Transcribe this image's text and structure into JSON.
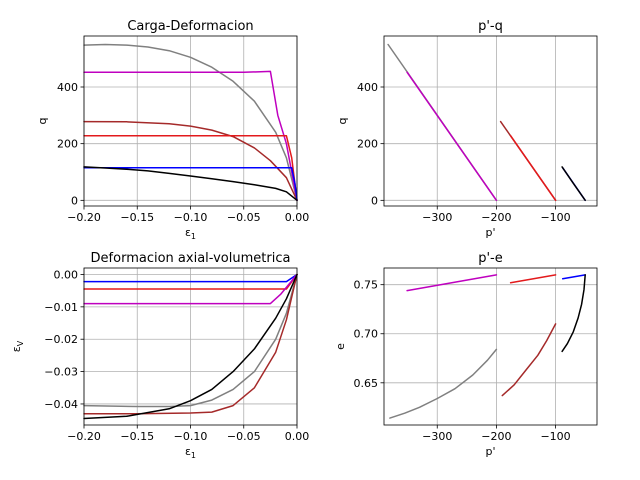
{
  "colors": {
    "blue": "#0000ff",
    "red": "#e31a1c",
    "purple": "#bf00bf",
    "brown": "#a52a2a",
    "gray": "#808080",
    "black": "#000000"
  },
  "chart_data": [
    {
      "id": "carga",
      "type": "line",
      "title": "Carga-Deformacion",
      "xlabel": "ε₁",
      "ylabel": "q",
      "xlim": [
        -0.2,
        0.0
      ],
      "ylim": [
        -20,
        580
      ],
      "xticks": [
        -0.2,
        -0.15,
        -0.1,
        -0.05,
        0.0
      ],
      "yticks": [
        0,
        200,
        400
      ],
      "xtick_labels": [
        "−0.20",
        "−0.15",
        "−0.10",
        "−0.05",
        "0.00"
      ],
      "ytick_labels": [
        "0",
        "200",
        "400"
      ],
      "grid": true,
      "series": [
        {
          "color": "gray",
          "points": [
            [
              -0.2,
              548
            ],
            [
              -0.18,
              550
            ],
            [
              -0.16,
              548
            ],
            [
              -0.14,
              541
            ],
            [
              -0.12,
              528
            ],
            [
              -0.1,
              505
            ],
            [
              -0.08,
              470
            ],
            [
              -0.06,
              420
            ],
            [
              -0.04,
              350
            ],
            [
              -0.02,
              240
            ],
            [
              -0.01,
              150
            ],
            [
              0,
              0
            ]
          ]
        },
        {
          "color": "purple",
          "points": [
            [
              -0.2,
              452
            ],
            [
              -0.1,
              452
            ],
            [
              -0.05,
              452
            ],
            [
              -0.025,
              455
            ],
            [
              -0.018,
              300
            ],
            [
              -0.01,
              200
            ],
            [
              0,
              0
            ]
          ]
        },
        {
          "color": "brown",
          "points": [
            [
              -0.2,
              278
            ],
            [
              -0.16,
              277
            ],
            [
              -0.12,
              270
            ],
            [
              -0.1,
              262
            ],
            [
              -0.08,
              248
            ],
            [
              -0.06,
              225
            ],
            [
              -0.04,
              185
            ],
            [
              -0.025,
              140
            ],
            [
              -0.01,
              80
            ],
            [
              0,
              0
            ]
          ]
        },
        {
          "color": "red",
          "points": [
            [
              -0.2,
              228
            ],
            [
              -0.1,
              228
            ],
            [
              -0.01,
              228
            ],
            [
              -0.005,
              150
            ],
            [
              0,
              0
            ]
          ]
        },
        {
          "color": "blue",
          "points": [
            [
              -0.2,
              115
            ],
            [
              -0.1,
              115
            ],
            [
              -0.005,
              115
            ],
            [
              -0.002,
              60
            ],
            [
              0,
              0
            ]
          ]
        },
        {
          "color": "black",
          "points": [
            [
              -0.2,
              118
            ],
            [
              -0.18,
              114
            ],
            [
              -0.16,
              110
            ],
            [
              -0.14,
              104
            ],
            [
              -0.12,
              95
            ],
            [
              -0.1,
              86
            ],
            [
              -0.08,
              76
            ],
            [
              -0.06,
              66
            ],
            [
              -0.04,
              55
            ],
            [
              -0.02,
              42
            ],
            [
              -0.01,
              30
            ],
            [
              0,
              0
            ]
          ]
        }
      ]
    },
    {
      "id": "pq",
      "type": "line",
      "title": "p'-q",
      "xlabel": "p'",
      "ylabel": "q",
      "xlim": [
        -390,
        -30
      ],
      "ylim": [
        -20,
        580
      ],
      "xticks": [
        -300,
        -200,
        -100
      ],
      "yticks": [
        0,
        200,
        400
      ],
      "xtick_labels": [
        "−300",
        "−200",
        "−100"
      ],
      "ytick_labels": [
        "0",
        "200",
        "400"
      ],
      "grid": true,
      "series": [
        {
          "color": "gray",
          "points": [
            [
              -383,
              550
            ],
            [
              -200,
              0
            ]
          ]
        },
        {
          "color": "purple",
          "points": [
            [
              -351,
              452
            ],
            [
              -200,
              0
            ]
          ]
        },
        {
          "color": "brown",
          "points": [
            [
              -193,
              278
            ],
            [
              -100,
              0
            ]
          ]
        },
        {
          "color": "red",
          "points": [
            [
              -176,
              228
            ],
            [
              -100,
              0
            ]
          ]
        },
        {
          "color": "blue",
          "points": [
            [
              -88,
              115
            ],
            [
              -50,
              0
            ]
          ]
        },
        {
          "color": "black",
          "points": [
            [
              -89,
              118
            ],
            [
              -70,
              60
            ],
            [
              -50,
              0
            ]
          ]
        }
      ]
    },
    {
      "id": "vol",
      "type": "line",
      "title": "Deformacion axial-volumetrica",
      "xlabel": "ε₁",
      "ylabel": "εV",
      "xlim": [
        -0.2,
        0.0
      ],
      "ylim": [
        -0.0465,
        0.002
      ],
      "xticks": [
        -0.2,
        -0.15,
        -0.1,
        -0.05,
        0.0
      ],
      "yticks": [
        0,
        -0.01,
        -0.02,
        -0.03,
        -0.04
      ],
      "xtick_labels": [
        "−0.20",
        "−0.15",
        "−0.10",
        "−0.05",
        "0.00"
      ],
      "ytick_labels": [
        "0.00",
        "−0.01",
        "−0.02",
        "−0.03",
        "−0.04"
      ],
      "grid": true,
      "series": [
        {
          "color": "blue",
          "points": [
            [
              -0.2,
              -0.0022
            ],
            [
              -0.01,
              -0.0022
            ],
            [
              0,
              0
            ]
          ]
        },
        {
          "color": "red",
          "points": [
            [
              -0.2,
              -0.0045
            ],
            [
              -0.01,
              -0.0045
            ],
            [
              0,
              0
            ]
          ]
        },
        {
          "color": "purple",
          "points": [
            [
              -0.2,
              -0.009
            ],
            [
              -0.025,
              -0.009
            ],
            [
              -0.015,
              -0.006
            ],
            [
              0,
              0
            ]
          ]
        },
        {
          "color": "gray",
          "points": [
            [
              -0.2,
              -0.0405
            ],
            [
              -0.15,
              -0.0408
            ],
            [
              -0.12,
              -0.0408
            ],
            [
              -0.1,
              -0.0405
            ],
            [
              -0.08,
              -0.0388
            ],
            [
              -0.06,
              -0.0355
            ],
            [
              -0.04,
              -0.03
            ],
            [
              -0.02,
              -0.02
            ],
            [
              -0.01,
              -0.012
            ],
            [
              0,
              0
            ]
          ]
        },
        {
          "color": "brown",
          "points": [
            [
              -0.2,
              -0.043
            ],
            [
              -0.15,
              -0.043
            ],
            [
              -0.1,
              -0.0428
            ],
            [
              -0.08,
              -0.0425
            ],
            [
              -0.06,
              -0.0405
            ],
            [
              -0.04,
              -0.035
            ],
            [
              -0.02,
              -0.024
            ],
            [
              -0.01,
              -0.014
            ],
            [
              0,
              0
            ]
          ]
        },
        {
          "color": "black",
          "points": [
            [
              -0.2,
              -0.0445
            ],
            [
              -0.16,
              -0.0438
            ],
            [
              -0.12,
              -0.0415
            ],
            [
              -0.1,
              -0.039
            ],
            [
              -0.08,
              -0.0355
            ],
            [
              -0.06,
              -0.03
            ],
            [
              -0.04,
              -0.023
            ],
            [
              -0.02,
              -0.0135
            ],
            [
              -0.01,
              -0.0075
            ],
            [
              0,
              0
            ]
          ]
        }
      ]
    },
    {
      "id": "pe",
      "type": "line",
      "title": "p'-e",
      "xlabel": "p'",
      "ylabel": "e",
      "xlim": [
        -390,
        -30
      ],
      "ylim": [
        0.607,
        0.767
      ],
      "xticks": [
        -300,
        -200,
        -100
      ],
      "yticks": [
        0.65,
        0.7,
        0.75
      ],
      "xtick_labels": [
        "−300",
        "−200",
        "−100"
      ],
      "ytick_labels": [
        "0.65",
        "0.70",
        "0.75"
      ],
      "grid": true,
      "series": [
        {
          "color": "purple",
          "points": [
            [
              -351,
              0.744
            ],
            [
              -200,
              0.76
            ]
          ]
        },
        {
          "color": "red",
          "points": [
            [
              -176,
              0.752
            ],
            [
              -100,
              0.76
            ]
          ]
        },
        {
          "color": "blue",
          "points": [
            [
              -88,
              0.756
            ],
            [
              -50,
              0.76
            ]
          ]
        },
        {
          "color": "black",
          "points": [
            [
              -89,
              0.682
            ],
            [
              -80,
              0.69
            ],
            [
              -70,
              0.702
            ],
            [
              -62,
              0.716
            ],
            [
              -56,
              0.73
            ],
            [
              -52,
              0.745
            ],
            [
              -50,
              0.76
            ]
          ]
        },
        {
          "color": "gray",
          "points": [
            [
              -380,
              0.614
            ],
            [
              -355,
              0.619
            ],
            [
              -330,
              0.625
            ],
            [
              -300,
              0.634
            ],
            [
              -270,
              0.644
            ],
            [
              -240,
              0.658
            ],
            [
              -215,
              0.673
            ],
            [
              -200,
              0.684
            ]
          ]
        },
        {
          "color": "brown",
          "points": [
            [
              -190,
              0.637
            ],
            [
              -170,
              0.648
            ],
            [
              -150,
              0.663
            ],
            [
              -130,
              0.678
            ],
            [
              -115,
              0.693
            ],
            [
              -100,
              0.71
            ]
          ]
        }
      ]
    }
  ]
}
